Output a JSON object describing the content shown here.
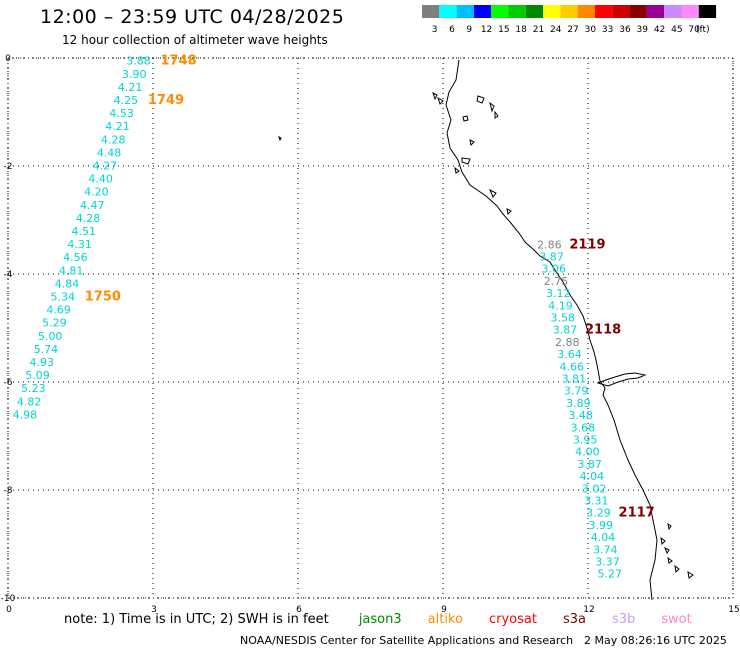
{
  "header": {
    "title": "12:00 – 23:59 UTC 04/28/2025",
    "subtitle": "12 hour collection of altimeter wave heights"
  },
  "legend": {
    "unit": "(ft)",
    "bins": [
      {
        "label": "3",
        "color": "#7f7f7f"
      },
      {
        "label": "6",
        "color": "#00ffff"
      },
      {
        "label": "9",
        "color": "#00bfff"
      },
      {
        "label": "12",
        "color": "#0000ff"
      },
      {
        "label": "15",
        "color": "#00ff00"
      },
      {
        "label": "18",
        "color": "#00cc00"
      },
      {
        "label": "21",
        "color": "#008800"
      },
      {
        "label": "24",
        "color": "#ffff00"
      },
      {
        "label": "27",
        "color": "#ffcc00"
      },
      {
        "label": "30",
        "color": "#ff8800"
      },
      {
        "label": "33",
        "color": "#ff0000"
      },
      {
        "label": "36",
        "color": "#cc0000"
      },
      {
        "label": "39",
        "color": "#880000"
      },
      {
        "label": "42",
        "color": "#990099"
      },
      {
        "label": "45",
        "color": "#cc88ff"
      },
      {
        "label": "70",
        "color": "#ff88ff"
      },
      {
        "label": "",
        "color": "#000000"
      }
    ]
  },
  "axes": {
    "x_ticks": [
      "0",
      "3",
      "6",
      "9",
      "12",
      "15"
    ],
    "y_ticks": [
      "0",
      "-2",
      "-4",
      "-6",
      "-8",
      "-10"
    ],
    "x_range": [
      0,
      15
    ],
    "y_range": [
      -10,
      0
    ]
  },
  "map": {
    "colors": {
      "track_low": "#00d4d4",
      "track_gray": "#808080",
      "altika": "#ff8c00",
      "s3a": "#800000"
    },
    "track_left": {
      "x0": 2.7,
      "y0": -0.05,
      "x1": 0.35,
      "y1": -6.6,
      "values": [
        "3.88",
        "3.90",
        "4.21",
        "4.25",
        "4.53",
        "4.21",
        "4.28",
        "4.48",
        "4.27",
        "4.40",
        "4.20",
        "4.47",
        "4.28",
        "4.51",
        "4.31",
        "4.56",
        "4.81",
        "4.84",
        "5.34",
        "4.69",
        "5.29",
        "5.00",
        "5.74",
        "4.93",
        "5.09",
        "5.23",
        "4.82",
        "4.98"
      ],
      "labels": [
        {
          "text": "1748",
          "row": 0
        },
        {
          "text": "1749",
          "row": 3
        },
        {
          "text": "1750",
          "row": 18
        }
      ]
    },
    "track_right": {
      "x0": 11.2,
      "y0": -3.45,
      "x1": 12.45,
      "y1": -9.55,
      "values": [
        {
          "v": "2.86",
          "gray": true
        },
        {
          "v": "3.87",
          "gray": false
        },
        {
          "v": "3.06",
          "gray": false
        },
        {
          "v": "2.75",
          "gray": true
        },
        {
          "v": "3.12",
          "gray": false
        },
        {
          "v": "4.19",
          "gray": false
        },
        {
          "v": "3.58",
          "gray": false
        },
        {
          "v": "3.87",
          "gray": false
        },
        {
          "v": "2.88",
          "gray": true
        },
        {
          "v": "3.64",
          "gray": false
        },
        {
          "v": "4.66",
          "gray": false
        },
        {
          "v": "3.81",
          "gray": false
        },
        {
          "v": "3.79",
          "gray": false
        },
        {
          "v": "3.89",
          "gray": false
        },
        {
          "v": "3.48",
          "gray": false
        },
        {
          "v": "3.68",
          "gray": false
        },
        {
          "v": "3.95",
          "gray": false
        },
        {
          "v": "4.00",
          "gray": false
        },
        {
          "v": "3.87",
          "gray": false
        },
        {
          "v": "4.04",
          "gray": false
        },
        {
          "v": "3.02",
          "gray": false
        },
        {
          "v": "3.31",
          "gray": false
        },
        {
          "v": "3.29",
          "gray": false
        },
        {
          "v": "3.99",
          "gray": false
        },
        {
          "v": "4.04",
          "gray": false
        },
        {
          "v": "3.74",
          "gray": false
        },
        {
          "v": "3.37",
          "gray": false
        },
        {
          "v": "5.27",
          "gray": false
        }
      ],
      "labels": [
        {
          "text": "2119",
          "row": 0
        },
        {
          "text": "2118",
          "row": 7
        },
        {
          "text": "2117",
          "row": 22
        }
      ]
    }
  },
  "note": {
    "prefix": "note:  1) Time is in UTC; 2) SWH is in feet",
    "missions": [
      {
        "name": "jason3",
        "color": "#008800"
      },
      {
        "name": "altiko",
        "color": "#ff8c00"
      },
      {
        "name": "cryosat",
        "color": "#ff0000"
      },
      {
        "name": "s3a",
        "color": "#800000"
      },
      {
        "name": "s3b",
        "color": "#c8a0ff"
      },
      {
        "name": "swot",
        "color": "#ff88cc"
      }
    ]
  },
  "footer": {
    "org": "NOAA/NESDIS Center for Satellite Applications and Research",
    "generated": "2 May 08:26:16 UTC 2025"
  }
}
